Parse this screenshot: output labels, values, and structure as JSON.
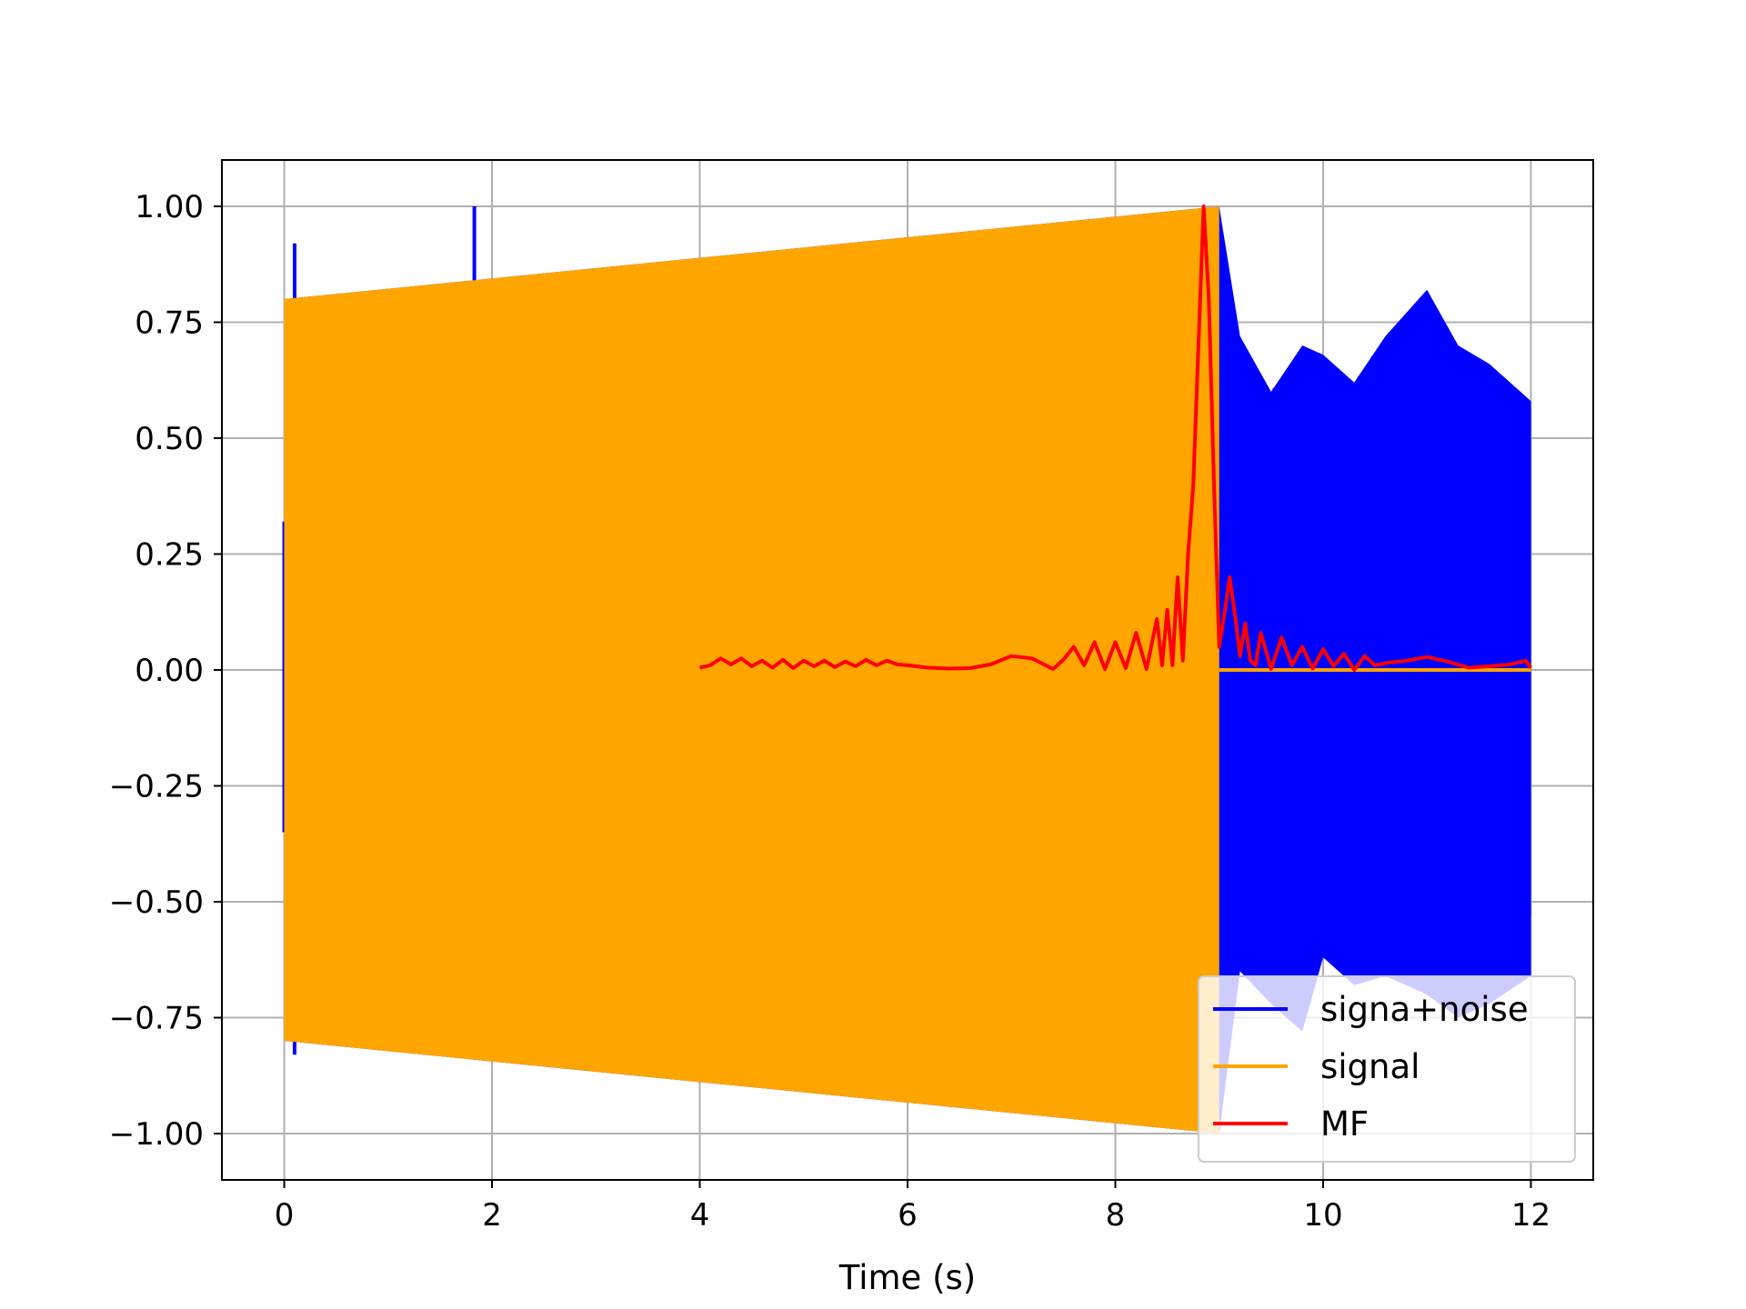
{
  "colors": {
    "signal_noise": "#0000ff",
    "signal": "#ffa500",
    "mf": "#ff0000",
    "grid": "#b0b0b0",
    "axes": "#000000"
  },
  "chart_data": {
    "type": "line",
    "title": "",
    "xlabel": "Time (s)",
    "ylabel": "",
    "xlim": [
      -0.6,
      12.6
    ],
    "ylim": [
      -1.1,
      1.1
    ],
    "grid": true,
    "legend_position": "lower-right",
    "x_ticks": [
      0,
      2,
      4,
      6,
      8,
      10,
      12
    ],
    "x_tick_labels": [
      "0",
      "2",
      "4",
      "6",
      "8",
      "10",
      "12"
    ],
    "y_ticks": [
      1.0,
      0.75,
      0.5,
      0.25,
      0.0,
      -0.25,
      -0.5,
      -0.75,
      -1.0
    ],
    "y_tick_labels": [
      "1.00",
      "0.75",
      "0.50",
      "0.25",
      "0.00",
      "−0.25",
      "−0.50",
      "−0.75",
      "−1.00"
    ],
    "series": [
      {
        "name": "signa+noise",
        "color_key": "signal_noise",
        "envelope_x": [
          0,
          9,
          9.2,
          9.5,
          9.8,
          10.0,
          10.3,
          10.6,
          11.0,
          11.3,
          11.6,
          12.0
        ],
        "upper": [
          0.8,
          1.0,
          0.72,
          0.6,
          0.7,
          0.68,
          0.62,
          0.72,
          0.82,
          0.7,
          0.66,
          0.58
        ],
        "lower": [
          -0.8,
          -1.0,
          -0.65,
          -0.72,
          -0.78,
          -0.62,
          -0.68,
          -0.66,
          -0.7,
          -0.75,
          -0.72,
          -0.66
        ],
        "spikes": [
          {
            "x": 0.0,
            "low": -0.35,
            "high": 0.32
          },
          {
            "x": 0.1,
            "low": -0.83,
            "high": 0.92
          },
          {
            "x": 1.83,
            "low": 0.8,
            "high": 1.0
          }
        ]
      },
      {
        "name": "signal",
        "color_key": "signal",
        "envelope_x": [
          0,
          9
        ],
        "upper": [
          0.8,
          1.0
        ],
        "lower": [
          -0.8,
          -1.0
        ],
        "flat_x": [
          9,
          12
        ],
        "flat_y": 0.0
      },
      {
        "name": "MF",
        "color_key": "mf",
        "x": [
          4.0,
          4.1,
          4.2,
          4.3,
          4.4,
          4.5,
          4.6,
          4.7,
          4.8,
          4.9,
          5.0,
          5.1,
          5.2,
          5.3,
          5.4,
          5.5,
          5.6,
          5.7,
          5.8,
          5.9,
          6.0,
          6.2,
          6.4,
          6.6,
          6.8,
          7.0,
          7.2,
          7.4,
          7.5,
          7.6,
          7.7,
          7.8,
          7.9,
          8.0,
          8.1,
          8.2,
          8.3,
          8.4,
          8.45,
          8.5,
          8.55,
          8.6,
          8.65,
          8.7,
          8.75,
          8.8,
          8.85,
          8.9,
          8.95,
          9.0,
          9.05,
          9.1,
          9.15,
          9.2,
          9.25,
          9.3,
          9.35,
          9.4,
          9.5,
          9.6,
          9.7,
          9.8,
          9.9,
          10.0,
          10.1,
          10.2,
          10.3,
          10.4,
          10.5,
          10.6,
          10.8,
          11.0,
          11.2,
          11.4,
          11.6,
          11.8,
          11.95,
          12.0
        ],
        "y": [
          0.005,
          0.01,
          0.025,
          0.012,
          0.025,
          0.008,
          0.02,
          0.005,
          0.022,
          0.004,
          0.02,
          0.008,
          0.02,
          0.006,
          0.018,
          0.008,
          0.022,
          0.01,
          0.02,
          0.012,
          0.01,
          0.005,
          0.003,
          0.004,
          0.012,
          0.03,
          0.025,
          0.002,
          0.022,
          0.05,
          0.01,
          0.06,
          0.002,
          0.06,
          0.004,
          0.08,
          0.002,
          0.11,
          0.01,
          0.13,
          0.01,
          0.2,
          0.02,
          0.25,
          0.4,
          0.7,
          1.0,
          0.8,
          0.4,
          0.05,
          0.12,
          0.2,
          0.12,
          0.03,
          0.1,
          0.02,
          0.01,
          0.08,
          0.002,
          0.07,
          0.01,
          0.05,
          0.003,
          0.045,
          0.008,
          0.035,
          0.0,
          0.03,
          0.01,
          0.015,
          0.02,
          0.028,
          0.018,
          0.005,
          0.008,
          0.012,
          0.02,
          0.005
        ]
      }
    ]
  }
}
